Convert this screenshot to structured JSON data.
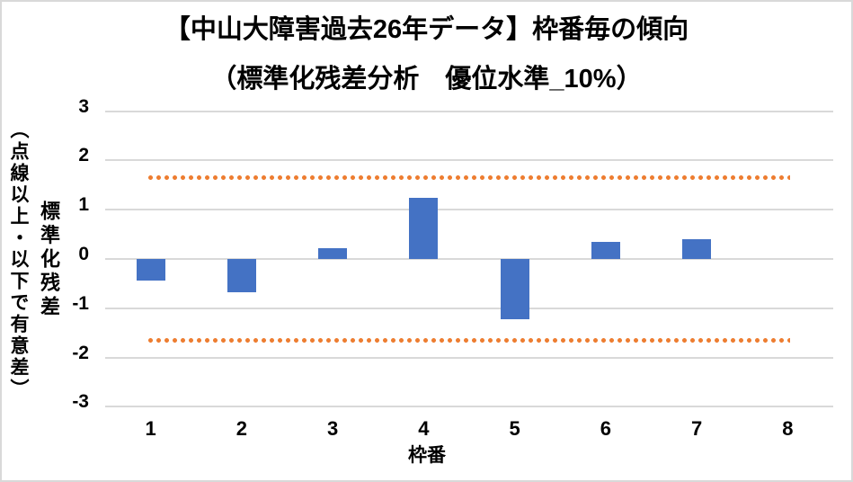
{
  "title_line1": "【中山大障害過去26年データ】枠番毎の傾向",
  "title_line2": "（標準化残差分析　優位水準_10%）",
  "chart_data": {
    "type": "bar",
    "title": "【中山大障害過去26年データ】枠番毎の傾向（標準化残差分析　優位水準_10%）",
    "categories": [
      "1",
      "2",
      "3",
      "4",
      "5",
      "6",
      "7",
      "8"
    ],
    "values": [
      -0.44,
      -0.68,
      0.22,
      1.24,
      -1.22,
      0.35,
      0.4,
      0
    ],
    "series_name": "標準化残差",
    "threshold_upper": 1.645,
    "threshold_lower": -1.645,
    "xlabel": "枠番",
    "ylabel": "標準化残差",
    "ylabel_note": "（点線以上・以下で有意差）",
    "yticks": [
      3,
      2,
      1,
      0,
      -1,
      -2,
      -3
    ],
    "ylim": [
      -3,
      3
    ],
    "grid": true,
    "bar_color": "#4472C4",
    "threshold_color": "#ED7D31",
    "gridline_color": "#D9D9D9"
  }
}
